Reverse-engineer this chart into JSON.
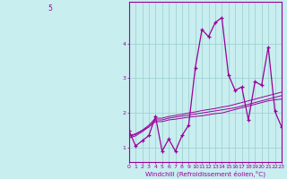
{
  "xlabel": "Windchill (Refroidissement éolien,°C)",
  "bg_color": "#c8eef0",
  "line_color": "#990099",
  "grid_color": "#99cccc",
  "x": [
    0,
    1,
    2,
    3,
    4,
    5,
    6,
    7,
    8,
    9,
    10,
    11,
    12,
    13,
    14,
    15,
    16,
    17,
    18,
    19,
    20,
    21,
    22,
    23
  ],
  "y_main": [
    1.5,
    1.05,
    1.2,
    1.35,
    1.9,
    0.9,
    1.25,
    0.9,
    1.35,
    1.65,
    3.3,
    4.4,
    4.2,
    4.6,
    4.75,
    3.1,
    2.65,
    2.75,
    1.8,
    2.9,
    2.8,
    3.9,
    2.05,
    1.6
  ],
  "y_trend1": [
    1.35,
    1.4,
    1.5,
    1.6,
    1.75,
    1.75,
    1.8,
    1.82,
    1.85,
    1.88,
    1.9,
    1.92,
    1.95,
    1.98,
    2.0,
    2.05,
    2.1,
    2.15,
    2.2,
    2.25,
    2.3,
    2.35,
    2.38,
    2.4
  ],
  "y_trend2": [
    1.32,
    1.38,
    1.5,
    1.65,
    1.85,
    1.85,
    1.9,
    1.93,
    1.96,
    2.0,
    2.03,
    2.07,
    2.1,
    2.13,
    2.17,
    2.2,
    2.25,
    2.3,
    2.35,
    2.4,
    2.45,
    2.5,
    2.55,
    2.6
  ],
  "y_trend3": [
    1.28,
    1.34,
    1.46,
    1.6,
    1.8,
    1.8,
    1.85,
    1.88,
    1.91,
    1.94,
    1.97,
    2.0,
    2.03,
    2.06,
    2.09,
    2.12,
    2.15,
    2.2,
    2.25,
    2.3,
    2.35,
    2.4,
    2.45,
    2.5
  ],
  "ylim": [
    0.6,
    5.2
  ],
  "yticks": [
    1,
    2,
    3,
    4
  ],
  "ytick_labels": [
    "1",
    "2",
    "3",
    "4"
  ],
  "top_label": "5",
  "xlim": [
    0,
    23
  ],
  "figwidth": 3.2,
  "figheight": 2.0,
  "dpi": 100
}
